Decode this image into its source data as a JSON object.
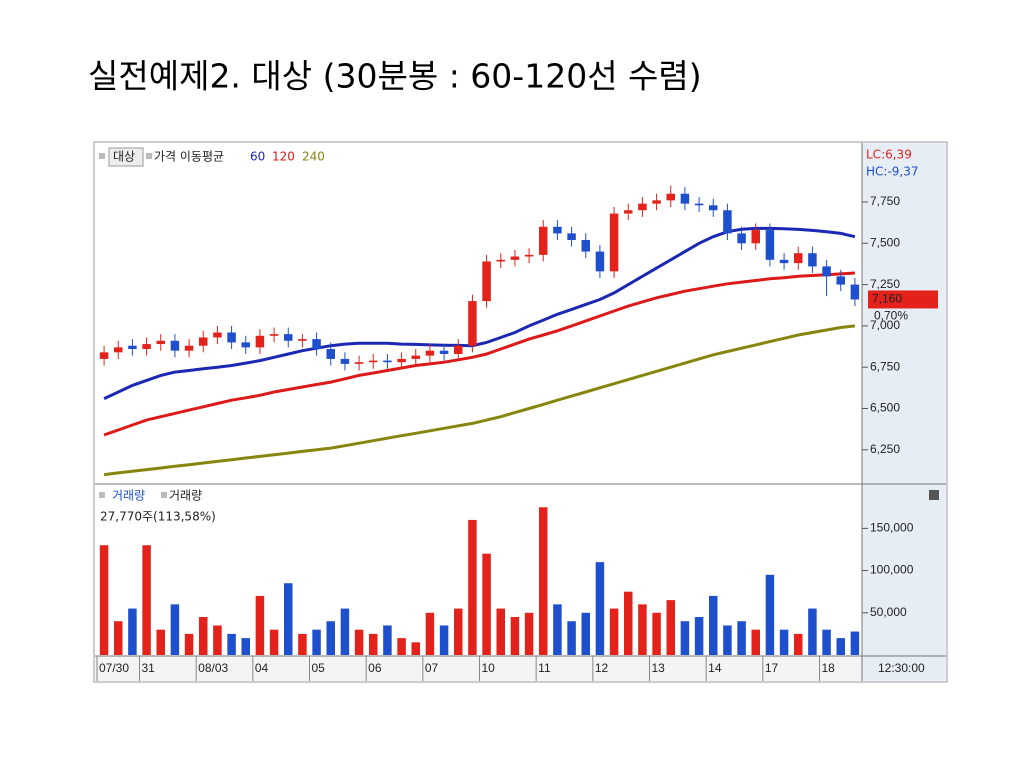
{
  "slide_title": "실전예제2.  대상 (30분봉 : 60-120선 수렴)",
  "chart_data": [
    {
      "type": "candlestick",
      "legend": {
        "symbol": "대상",
        "indicator": "가격 이동평균"
      },
      "info_labels": {
        "lc": "LC:6,39",
        "hc": "HC:-9,37",
        "change": "0,70%"
      },
      "last_price": {
        "value": 7160,
        "label": "7,160"
      },
      "time_label": "12:30:00",
      "categories": [
        "07/30",
        null,
        null,
        "31",
        null,
        null,
        null,
        "08/03",
        null,
        null,
        null,
        "04",
        null,
        null,
        null,
        "05",
        null,
        null,
        null,
        "06",
        null,
        null,
        null,
        "07",
        null,
        null,
        null,
        "10",
        null,
        null,
        null,
        "11",
        null,
        null,
        null,
        "12",
        null,
        null,
        null,
        "13",
        null,
        null,
        null,
        "14",
        null,
        null,
        null,
        "17",
        null,
        null,
        null,
        "18",
        null,
        null
      ],
      "open": [
        6800,
        6840,
        6880,
        6860,
        6890,
        6910,
        6850,
        6880,
        6930,
        6960,
        6900,
        6870,
        6940,
        6950,
        6910,
        6920,
        6860,
        6800,
        6770,
        6780,
        6790,
        6780,
        6800,
        6820,
        6850,
        6830,
        6880,
        7150,
        7390,
        7400,
        7420,
        7430,
        7600,
        7560,
        7520,
        7450,
        7330,
        7680,
        7700,
        7740,
        7760,
        7800,
        7740,
        7730,
        7700,
        7560,
        7500,
        7580,
        7400,
        7380,
        7440,
        7360,
        7300,
        7250
      ],
      "high": [
        6880,
        6910,
        6920,
        6930,
        6950,
        6950,
        6920,
        6970,
        7000,
        7000,
        6940,
        6980,
        6990,
        6990,
        6950,
        6960,
        6900,
        6840,
        6820,
        6830,
        6830,
        6840,
        6860,
        6890,
        6890,
        6920,
        7190,
        7430,
        7440,
        7460,
        7470,
        7640,
        7640,
        7600,
        7560,
        7490,
        7720,
        7740,
        7780,
        7800,
        7850,
        7840,
        7780,
        7770,
        7740,
        7600,
        7620,
        7620,
        7440,
        7480,
        7480,
        7400,
        7340,
        7290
      ],
      "low": [
        6760,
        6800,
        6820,
        6820,
        6850,
        6810,
        6810,
        6840,
        6890,
        6860,
        6830,
        6830,
        6900,
        6870,
        6870,
        6820,
        6760,
        6730,
        6730,
        6740,
        6740,
        6740,
        6760,
        6780,
        6790,
        6790,
        6840,
        7110,
        7350,
        7360,
        7380,
        7390,
        7520,
        7480,
        7410,
        7290,
        7290,
        7640,
        7660,
        7700,
        7720,
        7700,
        7690,
        7660,
        7520,
        7460,
        7460,
        7360,
        7340,
        7340,
        7320,
        7180,
        7210,
        7120
      ],
      "close": [
        6840,
        6870,
        6860,
        6890,
        6910,
        6850,
        6880,
        6930,
        6960,
        6900,
        6870,
        6940,
        6950,
        6910,
        6920,
        6860,
        6800,
        6770,
        6780,
        6790,
        6780,
        6800,
        6820,
        6850,
        6830,
        6880,
        7150,
        7390,
        7400,
        7420,
        7430,
        7600,
        7560,
        7520,
        7450,
        7330,
        7680,
        7700,
        7740,
        7760,
        7800,
        7740,
        7730,
        7700,
        7560,
        7500,
        7580,
        7400,
        7380,
        7440,
        7360,
        7300,
        7250,
        7160
      ],
      "up_color": "#e3221b",
      "down_color": "#1e4fcc",
      "overlays": [
        {
          "name": "60",
          "color": "#1a28b4",
          "values": [
            6560,
            6600,
            6640,
            6670,
            6700,
            6720,
            6730,
            6740,
            6750,
            6760,
            6775,
            6790,
            6810,
            6830,
            6850,
            6865,
            6880,
            6890,
            6895,
            6895,
            6895,
            6890,
            6888,
            6885,
            6883,
            6882,
            6880,
            6900,
            6930,
            6960,
            7000,
            7035,
            7070,
            7100,
            7130,
            7160,
            7200,
            7250,
            7300,
            7350,
            7400,
            7450,
            7500,
            7540,
            7570,
            7585,
            7590,
            7590,
            7588,
            7584,
            7578,
            7570,
            7560,
            7540
          ]
        },
        {
          "name": "120",
          "color": "#dc1a1a",
          "values": [
            6340,
            6370,
            6400,
            6430,
            6450,
            6470,
            6490,
            6510,
            6530,
            6550,
            6565,
            6580,
            6600,
            6615,
            6630,
            6645,
            6660,
            6680,
            6700,
            6715,
            6730,
            6745,
            6760,
            6770,
            6780,
            6795,
            6810,
            6830,
            6860,
            6890,
            6920,
            6945,
            6970,
            7000,
            7030,
            7060,
            7090,
            7120,
            7145,
            7170,
            7190,
            7210,
            7225,
            7240,
            7255,
            7265,
            7275,
            7285,
            7292,
            7300,
            7305,
            7310,
            7315,
            7320
          ]
        },
        {
          "name": "240",
          "color": "#86860e",
          "values": [
            6100,
            6110,
            6120,
            6130,
            6140,
            6150,
            6160,
            6170,
            6180,
            6190,
            6200,
            6210,
            6220,
            6230,
            6240,
            6250,
            6260,
            6275,
            6290,
            6305,
            6320,
            6335,
            6350,
            6365,
            6380,
            6395,
            6410,
            6430,
            6450,
            6475,
            6500,
            6525,
            6550,
            6575,
            6600,
            6625,
            6650,
            6675,
            6700,
            6725,
            6750,
            6775,
            6800,
            6825,
            6845,
            6865,
            6885,
            6905,
            6925,
            6945,
            6960,
            6975,
            6990,
            7000
          ]
        }
      ],
      "ylim": [
        6055,
        8095
      ],
      "yticks": [
        {
          "value": 6250,
          "label": "6,250"
        },
        {
          "value": 6500,
          "label": "6,500"
        },
        {
          "value": 6750,
          "label": "6,750"
        },
        {
          "value": 7000,
          "label": "7,000"
        },
        {
          "value": 7250,
          "label": "7,250"
        },
        {
          "value": 7500,
          "label": "7,500"
        },
        {
          "value": 7750,
          "label": "7,750"
        }
      ]
    },
    {
      "type": "bar",
      "legend": {
        "symbol": "거래량",
        "indicator": "거래량"
      },
      "readout": "27,770주(113,58%)",
      "values": [
        130000,
        40000,
        55000,
        130000,
        30000,
        60000,
        25000,
        45000,
        35000,
        25000,
        20000,
        70000,
        30000,
        85000,
        25000,
        30000,
        40000,
        55000,
        30000,
        25000,
        35000,
        20000,
        15000,
        50000,
        35000,
        55000,
        160000,
        120000,
        55000,
        45000,
        50000,
        175000,
        60000,
        40000,
        50000,
        110000,
        55000,
        75000,
        60000,
        50000,
        65000,
        40000,
        45000,
        70000,
        35000,
        40000,
        30000,
        95000,
        30000,
        25000,
        55000,
        30000,
        20000,
        27770
      ],
      "ylim": [
        0,
        199000
      ],
      "yticks": [
        {
          "value": 50000,
          "label": "50,000"
        },
        {
          "value": 100000,
          "label": "100,000"
        },
        {
          "value": 150000,
          "label": "150,000"
        }
      ]
    }
  ]
}
